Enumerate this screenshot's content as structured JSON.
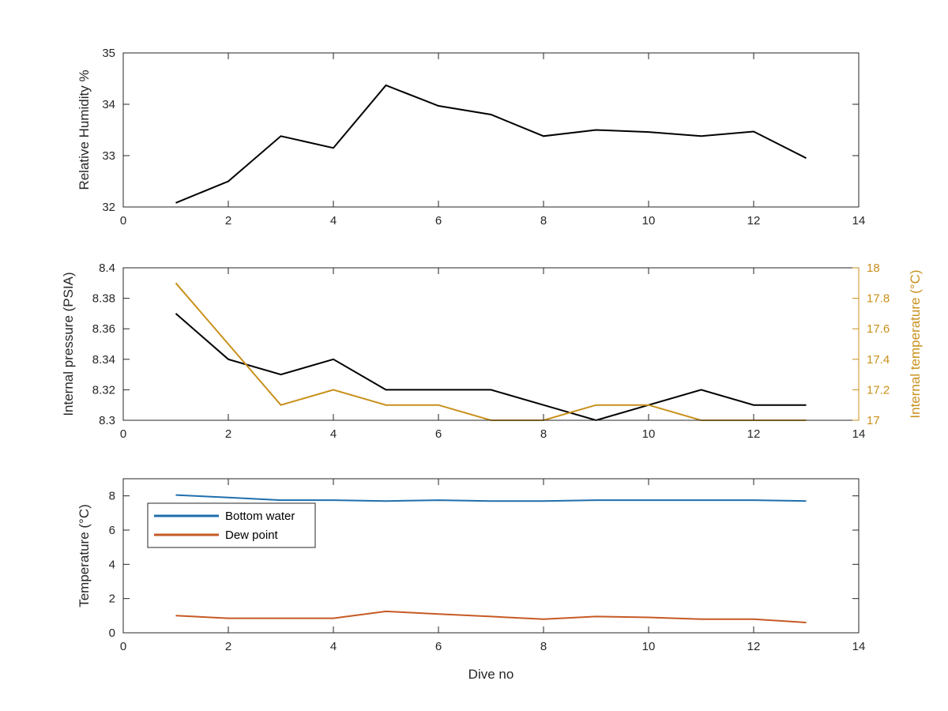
{
  "colors": {
    "black_line": "#000000",
    "temp_line": "#c8901b",
    "bottom_water": "#1f6fae",
    "dew_point": "#c65a24",
    "axis": "#262626"
  },
  "chart_data": [
    {
      "type": "line",
      "xlabel": "",
      "ylabel": "Relative Humidity %",
      "xlim": [
        0,
        14
      ],
      "ylim": [
        32,
        35
      ],
      "xticks": [
        0,
        2,
        4,
        6,
        8,
        10,
        12,
        14
      ],
      "yticks": [
        32,
        33,
        34,
        35
      ],
      "grid": false,
      "series": [
        {
          "color": "black_line",
          "x": [
            1,
            2,
            3,
            4,
            5,
            6,
            7,
            8,
            9,
            10,
            11,
            12,
            13
          ],
          "y": [
            32.08,
            32.5,
            33.38,
            33.15,
            34.37,
            33.97,
            33.8,
            33.38,
            33.5,
            33.46,
            33.38,
            33.47,
            32.95
          ]
        }
      ]
    },
    {
      "type": "line",
      "xlabel": "",
      "ylabel": "Internal pressure (PSIA)",
      "y2label": "Internal temperature (°C)",
      "xlim": [
        0,
        14
      ],
      "ylim": [
        8.3,
        8.4
      ],
      "y2lim": [
        17,
        18
      ],
      "xticks": [
        0,
        2,
        4,
        6,
        8,
        10,
        12,
        14
      ],
      "yticks": [
        8.3,
        8.32,
        8.34,
        8.36,
        8.38,
        8.4
      ],
      "y2ticks": [
        17,
        17.2,
        17.4,
        17.6,
        17.8,
        18
      ],
      "grid": false,
      "series": [
        {
          "axis": "left",
          "color": "black_line",
          "x": [
            1,
            2,
            3,
            4,
            5,
            6,
            7,
            8,
            9,
            10,
            11,
            12,
            13
          ],
          "y": [
            8.37,
            8.34,
            8.33,
            8.34,
            8.32,
            8.32,
            8.32,
            8.31,
            8.3,
            8.31,
            8.32,
            8.31,
            8.31
          ]
        },
        {
          "axis": "right",
          "color": "temp_line",
          "x": [
            1,
            2,
            3,
            4,
            5,
            6,
            7,
            8,
            9,
            10,
            11,
            12,
            13
          ],
          "y": [
            17.9,
            17.5,
            17.1,
            17.2,
            17.1,
            17.1,
            17.0,
            17.0,
            17.1,
            17.1,
            17.0,
            17.0,
            17.0
          ]
        }
      ]
    },
    {
      "type": "line",
      "xlabel": "Dive no",
      "ylabel": "Temperature (°C)",
      "xlim": [
        0,
        14
      ],
      "ylim": [
        0,
        9
      ],
      "xticks": [
        0,
        2,
        4,
        6,
        8,
        10,
        12,
        14
      ],
      "yticks": [
        0,
        2,
        4,
        6,
        8
      ],
      "grid": false,
      "legend_position": "top-left",
      "series": [
        {
          "name": "Bottom water",
          "color": "bottom_water",
          "x": [
            1,
            2,
            3,
            4,
            5,
            6,
            7,
            8,
            9,
            10,
            11,
            12,
            13
          ],
          "y": [
            8.05,
            7.9,
            7.75,
            7.75,
            7.7,
            7.75,
            7.7,
            7.7,
            7.75,
            7.75,
            7.75,
            7.75,
            7.7
          ]
        },
        {
          "name": "Dew point",
          "color": "dew_point",
          "x": [
            1,
            2,
            3,
            4,
            5,
            6,
            7,
            8,
            9,
            10,
            11,
            12,
            13
          ],
          "y": [
            1.0,
            0.85,
            0.85,
            0.85,
            1.25,
            1.1,
            0.95,
            0.8,
            0.95,
            0.9,
            0.8,
            0.8,
            0.6
          ]
        }
      ]
    }
  ]
}
